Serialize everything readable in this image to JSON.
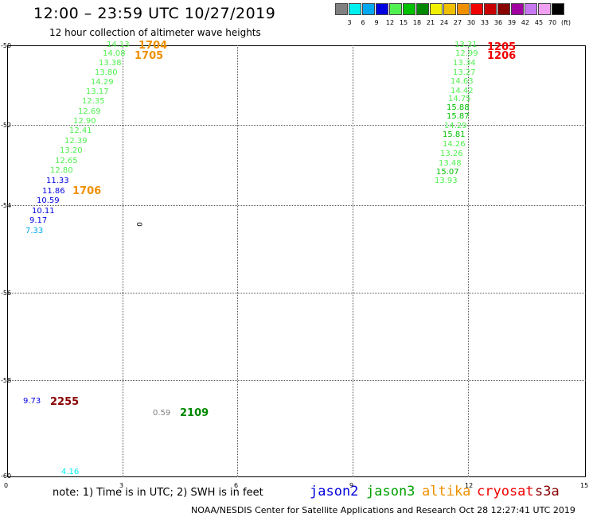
{
  "header": {
    "title": "12:00 – 23:59 UTC 10/27/2019",
    "subtitle": "12 hour collection of altimeter wave heights"
  },
  "scale": {
    "colors": [
      "#808080",
      "#00f0f0",
      "#00a8f0",
      "#0000e0",
      "#50f050",
      "#00c000",
      "#008800",
      "#f0f000",
      "#f0c000",
      "#f09000",
      "#f00000",
      "#c80000",
      "#880000",
      "#a000a0",
      "#c878f0",
      "#f0a0f0",
      "#000000"
    ],
    "labels": [
      "3",
      "6",
      "9",
      "12",
      "15",
      "18",
      "21",
      "24",
      "27",
      "30",
      "33",
      "36",
      "39",
      "42",
      "45",
      "70",
      "(ft)"
    ]
  },
  "axes": {
    "lat_labels": [
      "-50",
      "-52",
      "-54",
      "-56",
      "-58",
      "-60"
    ],
    "lon_labels": [
      "0",
      "3",
      "6",
      "9",
      "12",
      "15"
    ]
  },
  "chart_data": {
    "type": "map",
    "west_track": [
      {
        "v": "14.13",
        "c": "#50f050"
      },
      {
        "v": "14.08",
        "c": "#50f050"
      },
      {
        "v": "13.38",
        "c": "#50f050"
      },
      {
        "v": "13.80",
        "c": "#50f050"
      },
      {
        "v": "14.29",
        "c": "#50f050"
      },
      {
        "v": "13.17",
        "c": "#50f050"
      },
      {
        "v": "12.35",
        "c": "#50f050"
      },
      {
        "v": "12.69",
        "c": "#50f050"
      },
      {
        "v": "12.90",
        "c": "#50f050"
      },
      {
        "v": "12.41",
        "c": "#50f050"
      },
      {
        "v": "12.39",
        "c": "#50f050"
      },
      {
        "v": "13.20",
        "c": "#50f050"
      },
      {
        "v": "12.65",
        "c": "#50f050"
      },
      {
        "v": "12.80",
        "c": "#50f050"
      },
      {
        "v": "11.33",
        "c": "#0000e0"
      },
      {
        "v": "11.86",
        "c": "#0000e0"
      },
      {
        "v": "10.59",
        "c": "#0000e0"
      },
      {
        "v": "10.11",
        "c": "#0000e0"
      },
      {
        "v": "9.17",
        "c": "#0000e0"
      },
      {
        "v": "7.33",
        "c": "#00a8f0"
      }
    ],
    "east_track": [
      {
        "v": "13.31",
        "c": "#50f050"
      },
      {
        "v": "12.99",
        "c": "#50f050"
      },
      {
        "v": "13.34",
        "c": "#50f050"
      },
      {
        "v": "13.27",
        "c": "#50f050"
      },
      {
        "v": "14.63",
        "c": "#50f050"
      },
      {
        "v": "14.42",
        "c": "#50f050"
      },
      {
        "v": "14.75",
        "c": "#50f050"
      },
      {
        "v": "15.88",
        "c": "#00c000"
      },
      {
        "v": "15.87",
        "c": "#00c000"
      },
      {
        "v": "14.29",
        "c": "#50f050"
      },
      {
        "v": "15.81",
        "c": "#00c000"
      },
      {
        "v": "14.26",
        "c": "#50f050"
      },
      {
        "v": "13.26",
        "c": "#50f050"
      },
      {
        "v": "13.48",
        "c": "#50f050"
      },
      {
        "v": "15.07",
        "c": "#00c000"
      },
      {
        "v": "13.93",
        "c": "#50f050"
      }
    ],
    "single_obs": [
      {
        "v": "9.73",
        "c": "#0000e0"
      },
      {
        "v": "0.59",
        "c": "#808080"
      },
      {
        "v": "4.16",
        "c": "#00f0f0"
      },
      {
        "v": "0",
        "c": "#000000"
      }
    ],
    "time_labels": [
      {
        "t": "1704",
        "c": "#f09000"
      },
      {
        "t": "1705",
        "c": "#f09000"
      },
      {
        "t": "1706",
        "c": "#f09000"
      },
      {
        "t": "1205",
        "c": "#f00000"
      },
      {
        "t": "1206",
        "c": "#f00000"
      },
      {
        "t": "2255",
        "c": "#880000"
      },
      {
        "t": "2109",
        "c": "#008800"
      }
    ]
  },
  "note": "note: 1) Time is in UTC; 2) SWH is in feet",
  "satellites": [
    {
      "name": "jason2",
      "c": "#0000e0"
    },
    {
      "name": "jason3",
      "c": "#00a000"
    },
    {
      "name": "altika",
      "c": "#f09000"
    },
    {
      "name": "cryosat",
      "c": "#f00000"
    },
    {
      "name": "s3a",
      "c": "#880000"
    }
  ],
  "footer": "NOAA/NESDIS Center for Satellite Applications and Research    Oct 28 12:27:41 UTC 2019"
}
